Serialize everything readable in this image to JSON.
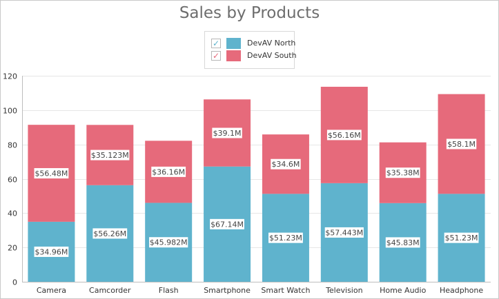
{
  "chart_data": {
    "type": "bar",
    "stacked": true,
    "title": "Sales by Products",
    "xlabel": "",
    "ylabel": "",
    "ylim": [
      0,
      120
    ],
    "yticks": [
      0,
      20,
      40,
      60,
      80,
      100,
      120
    ],
    "grid": true,
    "legend_position": "top-center",
    "categories": [
      "Camera",
      "Camcorder",
      "Flash",
      "Smartphone",
      "Smart Watch",
      "Television",
      "Home Audio",
      "Headphone"
    ],
    "series": [
      {
        "name": "DevAV North",
        "color": "#5fb3cd",
        "values": [
          34.96,
          56.26,
          45.982,
          67.14,
          51.23,
          57.443,
          45.83,
          51.23
        ],
        "labels": [
          "$34.96M",
          "$56.26M",
          "$45.982M",
          "$67.14M",
          "$51.23M",
          "$57.443M",
          "$45.83M",
          "$51.23M"
        ]
      },
      {
        "name": "DevAV South",
        "color": "#e66a7b",
        "values": [
          56.48,
          35.123,
          36.16,
          39.1,
          34.6,
          56.16,
          35.38,
          58.1
        ],
        "labels": [
          "$56.48M",
          "$35.123M",
          "$36.16M",
          "$39.1M",
          "$34.6M",
          "$56.16M",
          "$35.38M",
          "$58.1M"
        ]
      }
    ]
  },
  "legend": {
    "check_glyph": "✓",
    "items": [
      {
        "name": "DevAV North",
        "color": "#5fb3cd"
      },
      {
        "name": "DevAV South",
        "color": "#e66a7b"
      }
    ]
  }
}
